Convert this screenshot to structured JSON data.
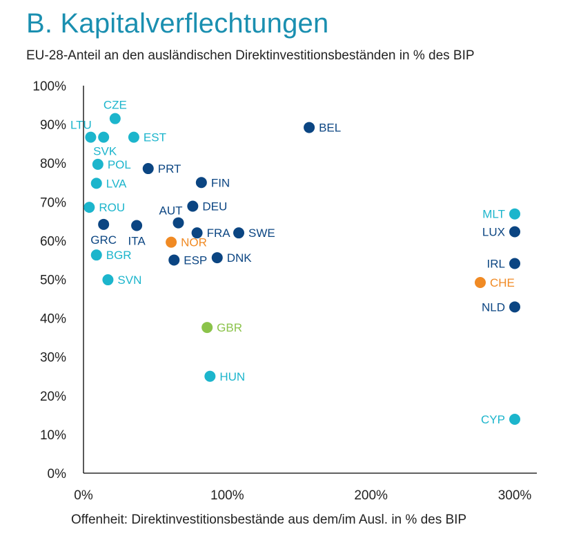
{
  "title": "B. Kapitalverflechtungen",
  "subtitle": "EU-28-Anteil an den ausländischen Direktinvestitionsbeständen in % des BIP",
  "chart_data": {
    "type": "scatter",
    "title": "B. Kapitalverflechtungen",
    "subtitle": "EU-28-Anteil an den ausländischen Direktinvestitionsbeständen in % des BIP",
    "xlabel": "Offenheit: Direktinvestitionsbestände aus dem/im Ausl. in % des BIP",
    "ylabel": "",
    "xlim": [
      0,
      300
    ],
    "ylim": [
      0,
      100
    ],
    "xticks": [
      0,
      100,
      200,
      300
    ],
    "xtick_labels": [
      "0%",
      "100%",
      "200%",
      "300%"
    ],
    "yticks": [
      0,
      10,
      20,
      30,
      40,
      50,
      60,
      70,
      80,
      90,
      100
    ],
    "ytick_labels": [
      "0%",
      "10%",
      "20%",
      "30%",
      "40%",
      "50%",
      "60%",
      "70%",
      "80%",
      "90%",
      "100%"
    ],
    "grid": false,
    "colors": {
      "dark_blue": "#0b4582",
      "light_blue": "#1cb5cc",
      "orange": "#f08a24",
      "green": "#8bc34a",
      "axis": "#000000",
      "tick_text": "#222222"
    },
    "points": [
      {
        "label": "CZE",
        "x": 22,
        "y": 91.5,
        "color": "light_blue"
      },
      {
        "label": "LTU",
        "x": 5,
        "y": 86.7,
        "color": "light_blue"
      },
      {
        "label": "SVK",
        "x": 14,
        "y": 86.7,
        "color": "light_blue"
      },
      {
        "label": "EST",
        "x": 35,
        "y": 86.7,
        "color": "light_blue"
      },
      {
        "label": "BEL",
        "x": 157,
        "y": 89.2,
        "color": "dark_blue"
      },
      {
        "label": "POL",
        "x": 10,
        "y": 79.7,
        "color": "light_blue"
      },
      {
        "label": "PRT",
        "x": 45,
        "y": 78.6,
        "color": "dark_blue"
      },
      {
        "label": "LVA",
        "x": 9,
        "y": 74.8,
        "color": "light_blue"
      },
      {
        "label": "FIN",
        "x": 82,
        "y": 75.0,
        "color": "dark_blue"
      },
      {
        "label": "ROU",
        "x": 4,
        "y": 68.6,
        "color": "light_blue"
      },
      {
        "label": "DEU",
        "x": 76,
        "y": 68.9,
        "color": "dark_blue"
      },
      {
        "label": "AUT",
        "x": 66,
        "y": 64.6,
        "color": "dark_blue"
      },
      {
        "label": "GRC",
        "x": 14,
        "y": 64.2,
        "color": "dark_blue"
      },
      {
        "label": "ITA",
        "x": 37,
        "y": 63.9,
        "color": "dark_blue"
      },
      {
        "label": "FRA",
        "x": 79,
        "y": 62.0,
        "color": "dark_blue"
      },
      {
        "label": "SWE",
        "x": 108,
        "y": 62.0,
        "color": "dark_blue"
      },
      {
        "label": "NOR",
        "x": 61,
        "y": 59.6,
        "color": "orange"
      },
      {
        "label": "BGR",
        "x": 9,
        "y": 56.3,
        "color": "light_blue"
      },
      {
        "label": "DNK",
        "x": 93,
        "y": 55.6,
        "color": "dark_blue"
      },
      {
        "label": "ESP",
        "x": 63,
        "y": 55.0,
        "color": "dark_blue"
      },
      {
        "label": "SVN",
        "x": 17,
        "y": 49.9,
        "color": "light_blue"
      },
      {
        "label": "GBR",
        "x": 86,
        "y": 37.6,
        "color": "green"
      },
      {
        "label": "HUN",
        "x": 88,
        "y": 25.0,
        "color": "light_blue"
      },
      {
        "label": "MLT",
        "x": 300,
        "y": 66.9,
        "color": "light_blue"
      },
      {
        "label": "LUX",
        "x": 300,
        "y": 62.3,
        "color": "dark_blue"
      },
      {
        "label": "IRL",
        "x": 300,
        "y": 54.1,
        "color": "dark_blue"
      },
      {
        "label": "CHE",
        "x": 276,
        "y": 49.2,
        "color": "orange"
      },
      {
        "label": "NLD",
        "x": 300,
        "y": 42.9,
        "color": "dark_blue"
      },
      {
        "label": "CYP",
        "x": 300,
        "y": 13.9,
        "color": "light_blue"
      }
    ]
  }
}
